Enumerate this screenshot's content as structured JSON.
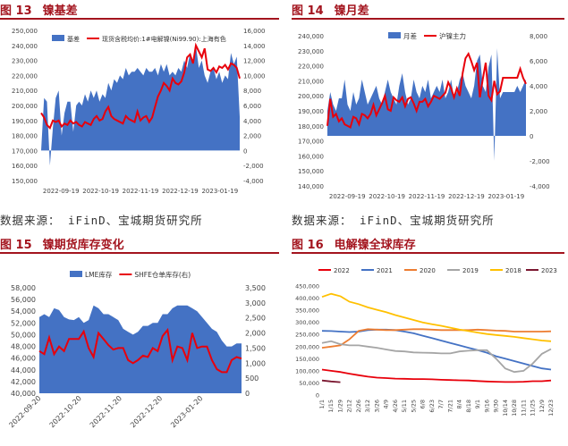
{
  "panels": [
    {
      "fig": "图 13",
      "title": "镍基差",
      "source": "数据来源：  iFinD、宝城期货研究所"
    },
    {
      "fig": "图 14",
      "title": "镍月差",
      "source": "数据来源：  iFinD、宝城期货研究所"
    },
    {
      "fig": "图 15",
      "title": "镍期货库存变化",
      "source": ""
    },
    {
      "fig": "图 16",
      "title": "电解镍全球库存",
      "source": ""
    }
  ],
  "colors": {
    "blue": "#4472c4",
    "red": "#e8000b",
    "header": "#a3141e"
  },
  "chart_data": [
    {
      "type": "area",
      "legend": [
        "基差",
        "现货含税均价:1#电解镍(Ni99.90):上海有色"
      ],
      "x_ticks": [
        "2022-09-19",
        "2022-10-19",
        "2022-11-19",
        "2022-12-19",
        "2023-01-19"
      ],
      "y_left": {
        "ylim": [
          150000,
          250000
        ],
        "ticks": [
          "150,000",
          "160,000",
          "170,000",
          "180,000",
          "190,000",
          "200,000",
          "210,000",
          "220,000",
          "230,000",
          "240,000",
          "250,000"
        ]
      },
      "y_right": {
        "ylim": [
          -4000,
          16000
        ],
        "ticks": [
          "-4,000",
          "-2,000",
          "0",
          "2,000",
          "4,000",
          "6,000",
          "8,000",
          "10,000",
          "12,000",
          "14,000",
          "16,000"
        ]
      },
      "series": [
        {
          "name": "基差",
          "axis": "right",
          "values": [
            0,
            7000,
            6500,
            -2000,
            3000,
            7000,
            8000,
            2000,
            5000,
            6500,
            6500,
            2500,
            6000,
            6500,
            6000,
            7500,
            6500,
            8000,
            7000,
            8000,
            6500,
            7500,
            7000,
            9000,
            8000,
            9500,
            9000,
            10000,
            9500,
            11000,
            10000,
            10500,
            10500,
            11000,
            10500,
            10000,
            11000,
            10500,
            10500,
            11000,
            10000,
            11500,
            10500,
            11500,
            10000,
            10500,
            10000,
            11000,
            10500,
            12000,
            11000,
            13000,
            12000,
            14000,
            11000,
            12000,
            10000,
            9000,
            10500,
            11000,
            9500,
            10500,
            9000,
            10000,
            9500,
            13000,
            11500,
            12500,
            4500
          ]
        },
        {
          "name": "现货含税均价:1#电解镍(Ni99.90):上海有色",
          "axis": "left",
          "values": [
            195000,
            192000,
            187000,
            185000,
            190000,
            189000,
            190000,
            186000,
            188000,
            187000,
            190000,
            188000,
            189000,
            187000,
            186000,
            189000,
            188000,
            187000,
            191000,
            193000,
            190000,
            191000,
            196000,
            199000,
            193000,
            191000,
            190000,
            189000,
            188000,
            193000,
            191000,
            190000,
            189000,
            196000,
            190000,
            192000,
            193000,
            189000,
            192000,
            199000,
            206000,
            210000,
            215000,
            213000,
            210000,
            218000,
            215000,
            214000,
            216000,
            222000,
            232000,
            234000,
            228000,
            240000,
            236000,
            232000,
            238000,
            224000,
            223000,
            225000,
            222000,
            226000,
            225000,
            227000,
            224000,
            228000,
            227000,
            225000,
            218000
          ]
        }
      ]
    },
    {
      "type": "area",
      "legend": [
        "月差",
        "沪镍主力"
      ],
      "x_ticks": [
        "2022-09-19",
        "2022-10-19",
        "2022-11-19",
        "2022-12-19",
        "2023-01-19"
      ],
      "y_left": {
        "ylim": [
          140000,
          240000
        ],
        "ticks": [
          "140,000",
          "150,000",
          "160,000",
          "170,000",
          "180,000",
          "190,000",
          "200,000",
          "210,000",
          "220,000",
          "230,000",
          "240,000"
        ]
      },
      "y_right": {
        "ylim": [
          -4000,
          8000
        ],
        "ticks": [
          "-4,000",
          "-2,000",
          "0",
          "2,000",
          "4,000",
          "6,000",
          "8,000"
        ]
      },
      "series": [
        {
          "name": "月差",
          "axis": "right",
          "values": [
            2000,
            3500,
            2500,
            2000,
            3000,
            3000,
            4500,
            2500,
            2000,
            3500,
            2500,
            3000,
            4500,
            3500,
            2500,
            3000,
            3500,
            4000,
            3000,
            2500,
            3500,
            4500,
            3500,
            3000,
            2500,
            4000,
            5000,
            3500,
            2500,
            3000,
            4500,
            3500,
            3000,
            4000,
            3500,
            4500,
            3000,
            3500,
            4000,
            3500,
            4500,
            3000,
            3500,
            4500,
            3000,
            3500,
            4500,
            5000,
            4000,
            3500,
            3000,
            4000,
            6000,
            6500,
            4000,
            3500,
            5500,
            6500,
            -2000,
            7000,
            3000,
            3500,
            3500,
            3500,
            3500,
            3500,
            4000,
            3500,
            4000,
            4500
          ]
        },
        {
          "name": "沪镍主力",
          "axis": "left",
          "values": [
            180000,
            198000,
            186000,
            188000,
            183000,
            185000,
            181000,
            180000,
            179000,
            186000,
            185000,
            181000,
            188000,
            187000,
            185000,
            188000,
            194000,
            187000,
            191000,
            195000,
            200000,
            191000,
            190000,
            199000,
            197000,
            196000,
            199000,
            193000,
            198000,
            199000,
            195000,
            190000,
            196000,
            196000,
            198000,
            193000,
            196000,
            200000,
            199000,
            198000,
            200000,
            202000,
            209000,
            205000,
            199000,
            205000,
            200000,
            215000,
            225000,
            228000,
            223000,
            217000,
            222000,
            199000,
            211000,
            222000,
            200000,
            197000,
            210000,
            201000,
            203000,
            212000,
            212000,
            212000,
            212000,
            212000,
            212000,
            218000,
            212000,
            208000
          ]
        }
      ]
    },
    {
      "type": "area",
      "legend": [
        "LME库存",
        "SHFE仓单库存(右)"
      ],
      "x_ticks": [
        "2022-09-20",
        "2022-10-20",
        "2022-11-20",
        "2022-12-20",
        "2023-01-20"
      ],
      "y_left": {
        "ylim": [
          40000,
          58000
        ],
        "ticks": [
          "40,000",
          "42,000",
          "44,000",
          "46,000",
          "48,000",
          "50,000",
          "52,000",
          "54,000",
          "56,000",
          "58,000"
        ]
      },
      "y_right": {
        "ylim": [
          0,
          3500
        ],
        "ticks": [
          "0",
          "500",
          "1,000",
          "1,500",
          "2,000",
          "2,500",
          "3,000",
          "3,500"
        ]
      },
      "series": [
        {
          "name": "LME库存",
          "axis": "left",
          "values": [
            53000,
            53500,
            53000,
            54500,
            54200,
            53000,
            52600,
            52500,
            53000,
            52000,
            52500,
            55000,
            54500,
            53500,
            53500,
            53000,
            52500,
            51000,
            50500,
            50000,
            50500,
            51500,
            51500,
            52000,
            52000,
            53500,
            53500,
            54500,
            55000,
            55000,
            55000,
            54500,
            54000,
            53000,
            52000,
            51000,
            50500,
            49000,
            48000,
            48000,
            48500,
            48500
          ]
        },
        {
          "name": "SHFE仓单库存(右)",
          "axis": "right",
          "values": [
            1400,
            1300,
            1850,
            1300,
            1550,
            1400,
            1800,
            1800,
            1800,
            2050,
            1500,
            1200,
            2000,
            1800,
            1600,
            1450,
            1500,
            1500,
            1100,
            1000,
            1100,
            1250,
            1200,
            1500,
            1400,
            1900,
            2100,
            1100,
            1550,
            1500,
            1100,
            2000,
            1500,
            1550,
            1550,
            1100,
            800,
            700,
            700,
            1100,
            1200,
            1150
          ]
        }
      ]
    },
    {
      "type": "line",
      "legend": [
        "2022",
        "2021",
        "2020",
        "2019",
        "2018",
        "2023"
      ],
      "series_colors": [
        "#e8000b",
        "#4472c4",
        "#ed7d31",
        "#a5a5a5",
        "#ffc000",
        "#7b1730"
      ],
      "x_ticks": [
        "1/1",
        "1/15",
        "1/29",
        "2/12",
        "2/26",
        "3/12",
        "3/26",
        "4/9",
        "4/26",
        "5/11",
        "5/25",
        "6/8",
        "6/23",
        "7/7",
        "7/21",
        "8/4",
        "8/18",
        "9/1",
        "9/16",
        "9/30",
        "10/14",
        "10/28",
        "11/11",
        "11/25",
        "12/9",
        "12/23"
      ],
      "y_left": {
        "ylim": [
          0,
          450000
        ],
        "ticks": [
          "0",
          "50,000",
          "100,000",
          "150,000",
          "200,000",
          "250,000",
          "300,000",
          "350,000",
          "400,000",
          "450,000"
        ]
      },
      "series": [
        {
          "name": "2022",
          "values": [
            105000,
            100000,
            95000,
            88000,
            82000,
            76000,
            72000,
            70000,
            68000,
            67000,
            66000,
            66000,
            65000,
            63000,
            62000,
            61000,
            60000,
            58000,
            56000,
            55000,
            54000,
            54000,
            55000,
            57000,
            57000,
            60000
          ]
        },
        {
          "name": "2021",
          "values": [
            265000,
            264000,
            262000,
            260000,
            262000,
            268000,
            270000,
            270000,
            268000,
            262000,
            255000,
            245000,
            235000,
            225000,
            215000,
            205000,
            195000,
            185000,
            175000,
            160000,
            150000,
            140000,
            130000,
            120000,
            110000,
            105000
          ]
        },
        {
          "name": "2020",
          "values": [
            195000,
            200000,
            205000,
            230000,
            265000,
            272000,
            270000,
            268000,
            268000,
            270000,
            272000,
            272000,
            270000,
            268000,
            268000,
            268000,
            268000,
            270000,
            268000,
            266000,
            265000,
            262000,
            262000,
            262000,
            262000,
            263000
          ]
        },
        {
          "name": "2019",
          "values": [
            215000,
            222000,
            210000,
            205000,
            205000,
            200000,
            195000,
            188000,
            182000,
            180000,
            176000,
            175000,
            174000,
            172000,
            172000,
            180000,
            183000,
            185000,
            185000,
            150000,
            110000,
            95000,
            100000,
            130000,
            170000,
            190000
          ]
        },
        {
          "name": "2018",
          "values": [
            405000,
            418000,
            408000,
            385000,
            375000,
            362000,
            352000,
            342000,
            330000,
            320000,
            310000,
            300000,
            292000,
            286000,
            278000,
            270000,
            264000,
            258000,
            252000,
            248000,
            244000,
            240000,
            235000,
            230000,
            225000,
            222000
          ]
        },
        {
          "name": "2023",
          "values": [
            60000,
            56000,
            53000
          ]
        }
      ]
    }
  ]
}
